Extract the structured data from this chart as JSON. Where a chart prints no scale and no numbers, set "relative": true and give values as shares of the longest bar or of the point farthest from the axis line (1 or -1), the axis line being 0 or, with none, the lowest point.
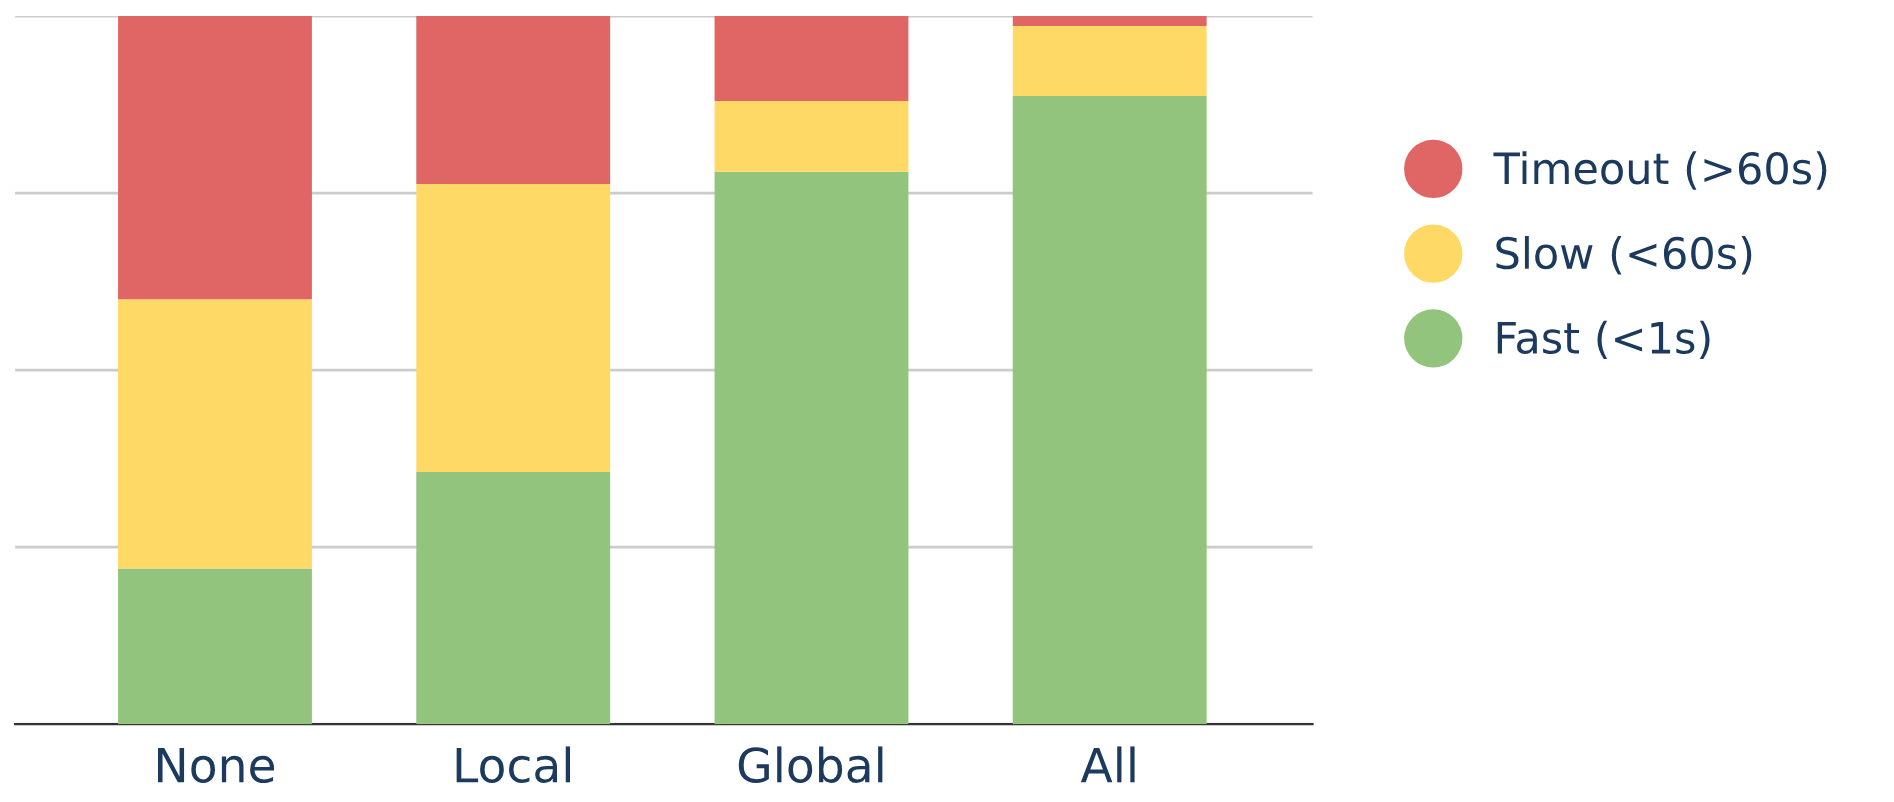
{
  "chart_data": {
    "type": "bar",
    "stacked": true,
    "relative": true,
    "categories": [
      "None",
      "Local",
      "Global",
      "All"
    ],
    "series": [
      {
        "name": "Fast (<1s)",
        "color": "#93c47d",
        "values": [
          0.22,
          0.356,
          0.78,
          0.887
        ]
      },
      {
        "name": "Slow (<60s)",
        "color": "#ffd966",
        "values": [
          0.38,
          0.407,
          0.1,
          0.099
        ]
      },
      {
        "name": "Timeout (>60s)",
        "color": "#e06666",
        "values": [
          0.4,
          0.237,
          0.12,
          0.014
        ]
      }
    ],
    "grid": "y",
    "legend": "right"
  }
}
